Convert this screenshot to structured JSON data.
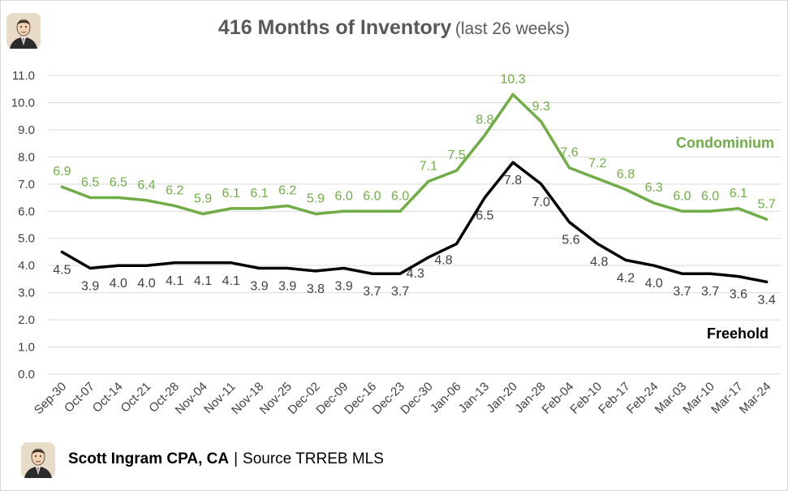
{
  "title": {
    "main": "416 Months of Inventory",
    "sub": "(last 26 weeks)"
  },
  "footer": {
    "author": "Scott Ingram CPA, CA",
    "separator": "|",
    "source": "Source TRREB MLS"
  },
  "colors": {
    "condominium": "#70AD47",
    "freehold": "#000000",
    "grid": "#d9d9d9",
    "text": "#595959"
  },
  "chart_data": {
    "type": "line",
    "title": "416 Months of Inventory (last 26 weeks)",
    "xlabel": "",
    "ylabel": "",
    "ylim": [
      0,
      11
    ],
    "yticks": [
      "0.0",
      "1.0",
      "2.0",
      "3.0",
      "4.0",
      "5.0",
      "6.0",
      "7.0",
      "8.0",
      "9.0",
      "10.0",
      "11.0"
    ],
    "grid": true,
    "categories": [
      "Sep-30",
      "Oct-07",
      "Oct-14",
      "Oct-21",
      "Oct-28",
      "Nov-04",
      "Nov-11",
      "Nov-18",
      "Nov-25",
      "Dec-02",
      "Dec-09",
      "Dec-16",
      "Dec-23",
      "Dec-30",
      "Jan-06",
      "Jan-13",
      "Jan-20",
      "Jan-28",
      "Feb-04",
      "Feb-10",
      "Feb-17",
      "Feb-24",
      "Mar-03",
      "Mar-10",
      "Mar-17",
      "Mar-24"
    ],
    "series": [
      {
        "name": "Condominium",
        "values": [
          6.9,
          6.5,
          6.5,
          6.4,
          6.2,
          5.9,
          6.1,
          6.1,
          6.2,
          5.9,
          6.0,
          6.0,
          6.0,
          7.1,
          7.5,
          8.8,
          10.3,
          9.3,
          7.6,
          7.2,
          6.8,
          6.3,
          6.0,
          6.0,
          6.1,
          5.7
        ],
        "labels": [
          "6.9",
          "6.5",
          "6.5",
          "6.4",
          "6.2",
          "5.9",
          "6.1",
          "6.1",
          "6.2",
          "5.9",
          "6.0",
          "6.0",
          "6.0",
          "7.1",
          "7.5",
          "8.8",
          "10.3",
          "9.3",
          "7.6",
          "7.2",
          "6.8",
          "6.3",
          "6.0",
          "6.0",
          "6.1",
          "5.7"
        ]
      },
      {
        "name": "Freehold",
        "values": [
          4.5,
          3.9,
          4.0,
          4.0,
          4.1,
          4.1,
          4.1,
          3.9,
          3.9,
          3.8,
          3.9,
          3.7,
          3.7,
          4.3,
          4.8,
          6.5,
          7.8,
          7.0,
          5.6,
          4.8,
          4.2,
          4.0,
          3.7,
          3.7,
          3.6,
          3.4
        ],
        "labels": [
          "4.5",
          "3.9",
          "4.0",
          "4.0",
          "4.1",
          "4.1",
          "4.1",
          "3.9",
          "3.9",
          "3.8",
          "3.9",
          "3.7",
          "3.7",
          "4.3",
          "4.8",
          "6.5",
          "7.8",
          "7.0",
          "5.6",
          "4.8",
          "4.2",
          "4.0",
          "3.7",
          "3.7",
          "3.6",
          "3.4"
        ]
      }
    ]
  }
}
